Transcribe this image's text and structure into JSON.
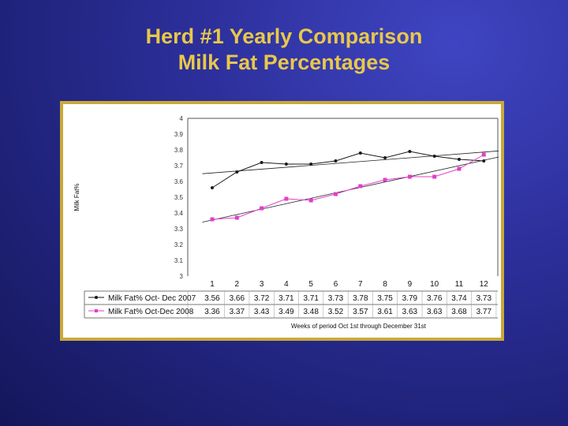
{
  "slide": {
    "title_line1": "Herd #1 Yearly Comparison",
    "title_line2": "Milk Fat Percentages"
  },
  "colors": {
    "title": "#e8c84a",
    "frame": "#c8a938",
    "series_2007": "#1a1a1a",
    "series_2008": "#e040c8"
  },
  "chart_data": {
    "type": "line",
    "ylabel": "Milk Fat%",
    "xlabel": "Weeks of period Oct 1st through December 31st",
    "ylim": [
      3,
      4
    ],
    "yticks": [
      "3",
      "3.1",
      "3.2",
      "3.3",
      "3.4",
      "3.5",
      "3.6",
      "3.7",
      "3.8",
      "3.9",
      "4"
    ],
    "categories": [
      "1",
      "2",
      "3",
      "4",
      "5",
      "6",
      "7",
      "8",
      "9",
      "10",
      "11",
      "12"
    ],
    "grid": false,
    "trendlines": true,
    "series": [
      {
        "name": "Milk Fat% Oct- Dec 2007",
        "values_text": [
          "3.56",
          "3.66",
          "3.72",
          "3.71",
          "3.71",
          "3.73",
          "3.78",
          "3.75",
          "3.79",
          "3.76",
          "3.74",
          "3.73"
        ],
        "values": [
          3.56,
          3.66,
          3.72,
          3.71,
          3.71,
          3.73,
          3.78,
          3.75,
          3.79,
          3.76,
          3.74,
          3.73
        ]
      },
      {
        "name": "Milk Fat% Oct-Dec 2008",
        "values_text": [
          "3.36",
          "3.37",
          "3.43",
          "3.49",
          "3.48",
          "3.52",
          "3.57",
          "3.61",
          "3.63",
          "3.63",
          "3.68",
          "3.77"
        ],
        "values": [
          3.36,
          3.37,
          3.43,
          3.49,
          3.48,
          3.52,
          3.57,
          3.61,
          3.63,
          3.63,
          3.68,
          3.77
        ]
      }
    ]
  }
}
